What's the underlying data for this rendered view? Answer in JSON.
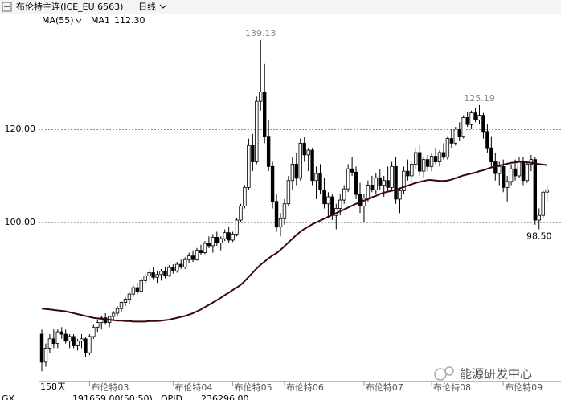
{
  "header": {
    "title": "布伦特主连(ICE_EU 6563)",
    "period": "日线"
  },
  "chart_data": {
    "type": "candlestick",
    "period_label": "158天",
    "ylim": [
      66,
      144.66
    ],
    "yticks": [
      {
        "value": 100,
        "label": "100.00"
      },
      {
        "value": 120,
        "label": "120.00"
      }
    ],
    "grid": true,
    "up_color": "#ffffff",
    "down_color": "#000000",
    "edge_color": "#000000",
    "categories": [
      null,
      null,
      null,
      null,
      null,
      null,
      null,
      null,
      null,
      null,
      null,
      null,
      "布伦特03",
      null,
      null,
      null,
      null,
      null,
      null,
      null,
      null,
      null,
      null,
      null,
      null,
      null,
      null,
      null,
      null,
      null,
      null,
      null,
      null,
      "布伦特04",
      null,
      null,
      null,
      null,
      null,
      null,
      null,
      null,
      null,
      null,
      null,
      null,
      null,
      null,
      "布伦特05",
      null,
      null,
      null,
      null,
      null,
      null,
      null,
      null,
      null,
      null,
      null,
      null,
      "布伦特06",
      null,
      null,
      null,
      null,
      null,
      null,
      null,
      null,
      null,
      null,
      null,
      null,
      null,
      null,
      null,
      null,
      null,
      null,
      null,
      "布伦特07",
      null,
      null,
      null,
      null,
      null,
      null,
      null,
      null,
      null,
      null,
      null,
      null,
      null,
      null,
      null,
      null,
      "布伦特08",
      null,
      null,
      null,
      null,
      null,
      null,
      null,
      null,
      null,
      null,
      null,
      null,
      null,
      null,
      null,
      null,
      null,
      "布伦特09",
      null,
      null,
      null,
      null,
      null,
      null,
      null,
      null,
      null,
      null,
      null
    ],
    "ohlc": [
      [
        76,
        77,
        68,
        70
      ],
      [
        70,
        74,
        69,
        73
      ],
      [
        73,
        76,
        72,
        75
      ],
      [
        75,
        77,
        73,
        74
      ],
      [
        74,
        77,
        73,
        76.5
      ],
      [
        76.5,
        77.5,
        75,
        76
      ],
      [
        76,
        77,
        74,
        74.5
      ],
      [
        74.5,
        76,
        73,
        75.5
      ],
      [
        75.5,
        76,
        73,
        73.5
      ],
      [
        73.5,
        75,
        72.5,
        74.5
      ],
      [
        74.5,
        76,
        73,
        75
      ],
      [
        75,
        75.5,
        71,
        72
      ],
      [
        72,
        76,
        71.5,
        75.5
      ],
      [
        75.5,
        78,
        75,
        77.5
      ],
      [
        77.5,
        79,
        76.5,
        78.5
      ],
      [
        78.5,
        80,
        77,
        79.5
      ],
      [
        79.5,
        80.5,
        78,
        78.5
      ],
      [
        78.5,
        80,
        77.5,
        79.8
      ],
      [
        79.8,
        81,
        78.8,
        80.5
      ],
      [
        80.5,
        82,
        80,
        81.5
      ],
      [
        81.5,
        83,
        80.8,
        82.8
      ],
      [
        82.8,
        84,
        82,
        83.5
      ],
      [
        83.5,
        85,
        82.5,
        84.6
      ],
      [
        84.6,
        86.5,
        84,
        86
      ],
      [
        86,
        87,
        84.5,
        85.2
      ],
      [
        85.2,
        88,
        85,
        87.5
      ],
      [
        87.5,
        89,
        86.8,
        88.5
      ],
      [
        88.5,
        90,
        87.5,
        89.2
      ],
      [
        89.2,
        90.5,
        87.8,
        88.2
      ],
      [
        88.2,
        89.5,
        87,
        88.8
      ],
      [
        88.8,
        90,
        87.5,
        89.5
      ],
      [
        89.5,
        90.5,
        88,
        88.6
      ],
      [
        88.6,
        90.8,
        88.3,
        90.3
      ],
      [
        90.3,
        91,
        89,
        89.6
      ],
      [
        89.6,
        91.5,
        89.2,
        91
      ],
      [
        91,
        92,
        90,
        90.4
      ],
      [
        90.4,
        92.5,
        90,
        92
      ],
      [
        92,
        93.5,
        91.2,
        92.8
      ],
      [
        92.8,
        94,
        91.5,
        92
      ],
      [
        92,
        94.5,
        91.8,
        94
      ],
      [
        94,
        95.2,
        93,
        93.5
      ],
      [
        93.5,
        96,
        93.2,
        95.5
      ],
      [
        95.5,
        97,
        94.5,
        95
      ],
      [
        95,
        97.5,
        93.5,
        96.8
      ],
      [
        96.8,
        98,
        95,
        95.6
      ],
      [
        95.6,
        97,
        94,
        96.5
      ],
      [
        96.5,
        98.5,
        96,
        97.8
      ],
      [
        97.8,
        99,
        95.5,
        96.2
      ],
      [
        96.2,
        98,
        95.8,
        97.5
      ],
      [
        97.5,
        101,
        97,
        100.5
      ],
      [
        100.5,
        104,
        100,
        103.5
      ],
      [
        103.5,
        108,
        103,
        107.5
      ],
      [
        107.5,
        118,
        107,
        116.5
      ],
      [
        116.5,
        119,
        111,
        113
      ],
      [
        113,
        127,
        112.5,
        126
      ],
      [
        126,
        139.13,
        124,
        128
      ],
      [
        128,
        134,
        117,
        118.5
      ],
      [
        118.5,
        122,
        111,
        112
      ],
      [
        112,
        113,
        103,
        104.5
      ],
      [
        104.5,
        106,
        98,
        99
      ],
      [
        99,
        102,
        97,
        100.8
      ],
      [
        100.8,
        105,
        99.5,
        104
      ],
      [
        104,
        110,
        103.5,
        109
      ],
      [
        109,
        114,
        107,
        112.5
      ],
      [
        112.5,
        115,
        108,
        109.5
      ],
      [
        109.5,
        118,
        109,
        117
      ],
      [
        117,
        118.3,
        113,
        114.5
      ],
      [
        114.5,
        116,
        111,
        115.5
      ],
      [
        115.5,
        116,
        108,
        109
      ],
      [
        109,
        112,
        105,
        110.5
      ],
      [
        110.5,
        112.5,
        106,
        107
      ],
      [
        107,
        109.5,
        103,
        104
      ],
      [
        104,
        106.5,
        101,
        105.5
      ],
      [
        105.5,
        106,
        100.5,
        101.5
      ],
      [
        101.5,
        104,
        98.5,
        103
      ],
      [
        103,
        106,
        101.5,
        104.8
      ],
      [
        104.8,
        108,
        104,
        107.2
      ],
      [
        107.2,
        112.5,
        106.5,
        111.5
      ],
      [
        111.5,
        114,
        110,
        110.8
      ],
      [
        110.8,
        112,
        105,
        106
      ],
      [
        106,
        108.5,
        102,
        103.5
      ],
      [
        103.5,
        106,
        100,
        105.2
      ],
      [
        105.2,
        109,
        104.5,
        108
      ],
      [
        108,
        110,
        106.5,
        107
      ],
      [
        107,
        110.5,
        106,
        109.6
      ],
      [
        109.6,
        111.5,
        107,
        108
      ],
      [
        108,
        110,
        105.5,
        109
      ],
      [
        109,
        112,
        106.5,
        107.5
      ],
      [
        107.5,
        113,
        107,
        112
      ],
      [
        112,
        114,
        104,
        105
      ],
      [
        105,
        107.5,
        102,
        106.8
      ],
      [
        106.8,
        112,
        106,
        111
      ],
      [
        111,
        113.5,
        109,
        110
      ],
      [
        110,
        113,
        108.5,
        112.5
      ],
      [
        112.5,
        116,
        111.5,
        115
      ],
      [
        115,
        116.5,
        110,
        111
      ],
      [
        111,
        114,
        109.5,
        113.5
      ],
      [
        113.5,
        114.5,
        111,
        112
      ],
      [
        112,
        115,
        111,
        114.2
      ],
      [
        114.2,
        116,
        112.5,
        113
      ],
      [
        113,
        115.5,
        112,
        115
      ],
      [
        115,
        117,
        113.5,
        114
      ],
      [
        114,
        118.5,
        113.5,
        118
      ],
      [
        118,
        120,
        116,
        117
      ],
      [
        117,
        120.5,
        116.5,
        120
      ],
      [
        120,
        121.5,
        117.5,
        118.5
      ],
      [
        118.5,
        123,
        118,
        122.5
      ],
      [
        122.5,
        123.8,
        120.5,
        121
      ],
      [
        121,
        124,
        120,
        123.5
      ],
      [
        123.5,
        124.5,
        121.5,
        122
      ],
      [
        122,
        125.19,
        121,
        123
      ],
      [
        123,
        123.5,
        118,
        119.5
      ],
      [
        119.5,
        121,
        115,
        116
      ],
      [
        116,
        118.5,
        112,
        113
      ],
      [
        113,
        115,
        109,
        110.5
      ],
      [
        110.5,
        113,
        108,
        112
      ],
      [
        112,
        113.5,
        106.5,
        107.5
      ],
      [
        107.5,
        110,
        104.5,
        108.8
      ],
      [
        108.8,
        112.5,
        108,
        111.5
      ],
      [
        111.5,
        113.5,
        109,
        110
      ],
      [
        110,
        114,
        109.5,
        113
      ],
      [
        113,
        114,
        108,
        109
      ],
      [
        109,
        113,
        108.5,
        112.5
      ],
      [
        112.5,
        114.5,
        111,
        113.5
      ],
      [
        113.5,
        114,
        99.5,
        100.5
      ],
      [
        100.5,
        103,
        98.5,
        101.5
      ],
      [
        101.5,
        107,
        101,
        106.5
      ],
      [
        106.5,
        108,
        104.5,
        107
      ]
    ],
    "ma": {
      "period_label": "MA(55)",
      "name": "MA1",
      "current": {
        "value": 112.3,
        "label": "112.30"
      },
      "color": "#3a0808",
      "values": [
        81.5,
        81.4,
        81.3,
        81.2,
        81.1,
        81,
        80.9,
        80.7,
        80.5,
        80.3,
        80.1,
        79.9,
        79.7,
        79.5,
        79.4,
        79.3,
        79.2,
        79.1,
        79,
        78.9,
        78.9,
        78.8,
        78.8,
        78.7,
        78.7,
        78.7,
        78.7,
        78.8,
        78.8,
        78.8,
        78.9,
        79,
        79.1,
        79.3,
        79.5,
        79.7,
        79.9,
        80.2,
        80.5,
        80.9,
        81.3,
        81.8,
        82.3,
        82.8,
        83.3,
        83.8,
        84.4,
        84.9,
        85.5,
        86,
        86.6,
        87.4,
        88.3,
        89.2,
        90.1,
        90.9,
        91.6,
        92.3,
        92.9,
        93.4,
        94.1,
        94.9,
        95.7,
        96.5,
        97.3,
        98,
        98.6,
        99.1,
        99.6,
        100,
        100.4,
        100.8,
        101.2,
        101.6,
        102,
        102.4,
        102.8,
        103.2,
        103.6,
        104,
        104.3,
        104.7,
        105,
        105.4,
        105.7,
        106.1,
        106.4,
        106.6,
        106.8,
        107,
        107.3,
        107.6,
        107.9,
        108.2,
        108.5,
        108.7,
        108.9,
        109.1,
        109.1,
        109,
        108.9,
        108.9,
        109,
        109.2,
        109.5,
        109.8,
        110.1,
        110.3,
        110.5,
        110.7,
        111,
        111.2,
        111.5,
        111.8,
        112,
        112.2,
        112.4,
        112.6,
        112.8,
        112.9,
        113,
        113,
        112.9,
        112.8,
        112.7,
        112.5,
        112.4,
        112.3
      ]
    },
    "annotations": [
      {
        "candle": 55,
        "field": 1,
        "label": "139.13",
        "side": "above",
        "color": "#888888"
      },
      {
        "candle": 110,
        "field": 1,
        "label": "125.19",
        "side": "above",
        "color": "#888888"
      },
      {
        "candle": 125,
        "field": 2,
        "label": "98.50",
        "side": "below",
        "color": "#000000"
      }
    ]
  },
  "footer": [
    "GX",
    "191659.00(50:50)",
    "OPID",
    "236296.00"
  ],
  "watermark": "能源研发中心"
}
